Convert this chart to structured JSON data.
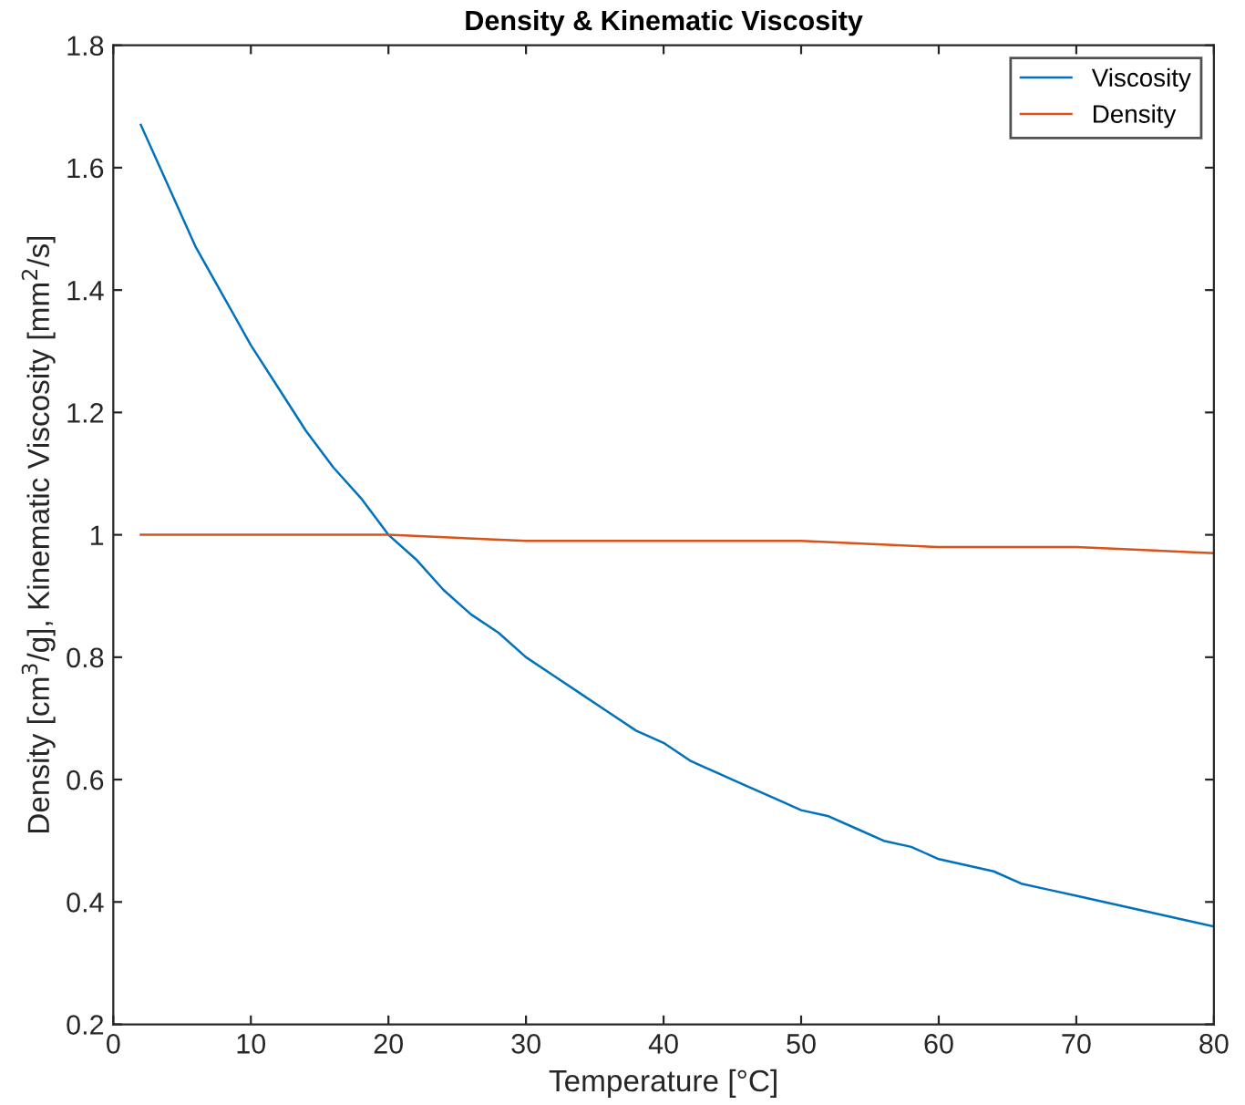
{
  "chart_data": {
    "type": "line",
    "title": "Density & Kinematic Viscosity",
    "xlabel": "Temperature [°C]",
    "ylabel": "Density [cm$^{3}$/g], Kinematic Viscosity [mm$^{2}$/s]",
    "xlim": [
      0,
      80
    ],
    "ylim": [
      0.2,
      1.8
    ],
    "xticks": [
      0,
      10,
      20,
      30,
      40,
      50,
      60,
      70,
      80
    ],
    "yticks": [
      0.2,
      0.4,
      0.6,
      0.8,
      1,
      1.2,
      1.4,
      1.6,
      1.8
    ],
    "grid": false,
    "legend": "top right",
    "marker": "none",
    "line_style": "solid",
    "series": [
      {
        "name": "Viscosity",
        "color": "#0072bd",
        "x": [
          2,
          4,
          6,
          8,
          10,
          12,
          14,
          16,
          18,
          20,
          22,
          24,
          26,
          28,
          30,
          32,
          34,
          36,
          38,
          40,
          42,
          44,
          46,
          48,
          50,
          52,
          54,
          56,
          58,
          60,
          62,
          64,
          66,
          68,
          70,
          72,
          74,
          76,
          78,
          80
        ],
        "values": [
          1.67,
          1.57,
          1.47,
          1.39,
          1.31,
          1.24,
          1.17,
          1.11,
          1.06,
          1.0,
          0.96,
          0.91,
          0.87,
          0.84,
          0.8,
          0.77,
          0.74,
          0.71,
          0.68,
          0.66,
          0.63,
          0.61,
          0.59,
          0.57,
          0.55,
          0.54,
          0.52,
          0.5,
          0.49,
          0.47,
          0.46,
          0.45,
          0.43,
          0.42,
          0.41,
          0.4,
          0.39,
          0.38,
          0.37,
          0.36
        ]
      },
      {
        "name": "Density",
        "color": "#d95319",
        "x": [
          2,
          10,
          20,
          30,
          40,
          50,
          60,
          70,
          80
        ],
        "values": [
          1.0,
          1.0,
          1.0,
          0.99,
          0.99,
          0.99,
          0.98,
          0.98,
          0.97
        ]
      }
    ]
  }
}
